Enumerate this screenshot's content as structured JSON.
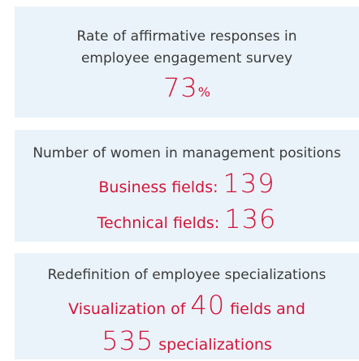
{
  "panels": [
    {
      "title": [
        "Rate of affirmative responses in",
        "employee engagement survey"
      ],
      "value": 73,
      "unit": "%"
    },
    {
      "title": "Number of women in management positions",
      "lines": [
        {
          "label": "Business fields:",
          "value": 139
        },
        {
          "label": "Technical fields:",
          "value": 136
        }
      ]
    },
    {
      "title": "Redefinition of employee specializations",
      "line1": {
        "before": "Visualization of",
        "value": 40,
        "after": "fields and"
      },
      "line2": {
        "value": 535,
        "after": "specializations"
      }
    }
  ]
}
